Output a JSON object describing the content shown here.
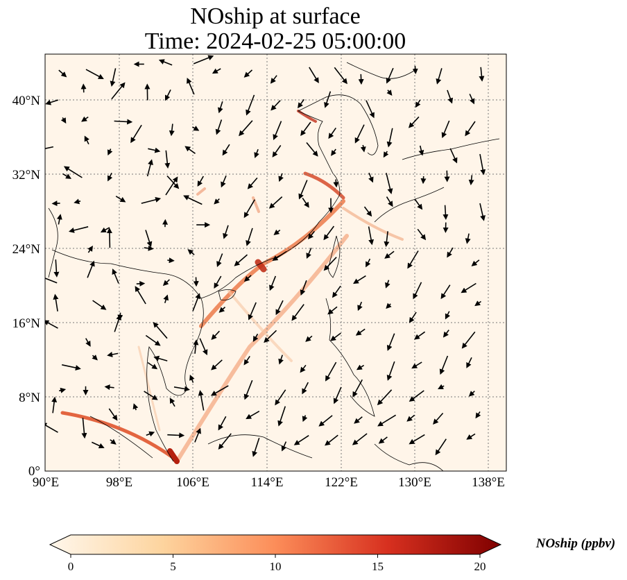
{
  "title": {
    "line1": "NOship at surface",
    "line2": "Time: 2024-02-25 05:00:00"
  },
  "map": {
    "lon_range": [
      90,
      140
    ],
    "lat_range": [
      0,
      45
    ],
    "lon_ticks": [
      "90°E",
      "98°E",
      "106°E",
      "114°E",
      "122°E",
      "130°E",
      "138°E"
    ],
    "lat_ticks": [
      "0°",
      "8°N",
      "16°N",
      "24°N",
      "32°N",
      "40°N"
    ],
    "gridlines": "dotted",
    "background_color": "#fff5e9"
  },
  "colorbar": {
    "label": "NOship (ppbv)",
    "ticks": [
      "0",
      "5",
      "10",
      "15",
      "20"
    ],
    "range": [
      0,
      20
    ],
    "colormap": "OrRd",
    "extend": "both",
    "colors": [
      "#fff7ec",
      "#fdd49e",
      "#fc8d59",
      "#d7301f",
      "#7f0000"
    ]
  },
  "plume_color": "#e0552e"
}
